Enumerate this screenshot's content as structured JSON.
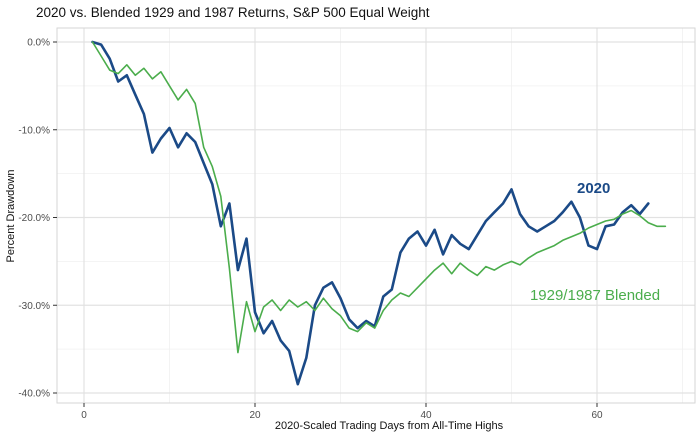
{
  "chart_data": {
    "type": "line",
    "title": "2020 vs. Blended 1929 and 1987 Returns, S&P 500 Equal Weight",
    "xlabel": "2020-Scaled Trading Days from All-Time Highs",
    "ylabel": "Percent Drawdown",
    "grid": "on",
    "legend": "in-chart text annotations",
    "x_axis": {
      "tick_values": [
        0,
        20,
        40,
        60
      ],
      "tick_labels": [
        "0",
        "20",
        "40",
        "60"
      ],
      "minor_ticks": [
        10,
        30,
        50,
        70
      ],
      "range": [
        -3,
        71
      ]
    },
    "y_axis": {
      "tick_values": [
        0,
        -10,
        -20,
        -30,
        -40
      ],
      "tick_labels": [
        "0.0%",
        "-10.0%",
        "-20.0%",
        "-30.0%",
        "-40.0%"
      ],
      "minor_ticks": [
        -5,
        -15,
        -25,
        -35
      ],
      "range": [
        -41.5,
        1.5
      ]
    },
    "annotations": {
      "label_2020": "2020",
      "label_blended": "1929/1987 Blended"
    },
    "colors": {
      "blue_2020": "#1b4a87",
      "green_blended": "#4bad4c",
      "grid_major": "#e2e2e2",
      "grid_minor": "#f0f0f0",
      "panel_border": "#d6d6d6",
      "tick_mark": "#333333"
    },
    "series": [
      {
        "id": "2020",
        "name": "2020",
        "color_key": "blue_2020",
        "width": 2.6,
        "points": [
          [
            1,
            0.0
          ],
          [
            2,
            -0.3
          ],
          [
            3,
            -1.9
          ],
          [
            4,
            -4.5
          ],
          [
            5,
            -3.8
          ],
          [
            6,
            -6.0
          ],
          [
            7,
            -8.2
          ],
          [
            8,
            -12.6
          ],
          [
            9,
            -11.0
          ],
          [
            10,
            -9.8
          ],
          [
            11,
            -12.0
          ],
          [
            12,
            -10.4
          ],
          [
            13,
            -11.4
          ],
          [
            14,
            -13.8
          ],
          [
            15,
            -16.2
          ],
          [
            16,
            -21.0
          ],
          [
            17,
            -18.4
          ],
          [
            18,
            -26.0
          ],
          [
            19,
            -22.4
          ],
          [
            20,
            -30.8
          ],
          [
            21,
            -33.2
          ],
          [
            22,
            -31.8
          ],
          [
            23,
            -34.0
          ],
          [
            24,
            -35.2
          ],
          [
            25,
            -39.0
          ],
          [
            26,
            -36.0
          ],
          [
            27,
            -30.0
          ],
          [
            28,
            -28.0
          ],
          [
            29,
            -27.4
          ],
          [
            30,
            -29.2
          ],
          [
            31,
            -31.6
          ],
          [
            32,
            -32.6
          ],
          [
            33,
            -31.8
          ],
          [
            34,
            -32.4
          ],
          [
            35,
            -29.0
          ],
          [
            36,
            -28.2
          ],
          [
            37,
            -24.0
          ],
          [
            38,
            -22.4
          ],
          [
            39,
            -21.6
          ],
          [
            40,
            -23.2
          ],
          [
            41,
            -21.4
          ],
          [
            42,
            -24.2
          ],
          [
            43,
            -22.0
          ],
          [
            44,
            -23.0
          ],
          [
            45,
            -23.6
          ],
          [
            46,
            -22.0
          ],
          [
            47,
            -20.4
          ],
          [
            48,
            -19.4
          ],
          [
            49,
            -18.4
          ],
          [
            50,
            -16.8
          ],
          [
            51,
            -19.6
          ],
          [
            52,
            -21.0
          ],
          [
            53,
            -21.6
          ],
          [
            54,
            -21.0
          ],
          [
            55,
            -20.4
          ],
          [
            56,
            -19.4
          ],
          [
            57,
            -18.2
          ],
          [
            58,
            -20.0
          ],
          [
            59,
            -23.2
          ],
          [
            60,
            -23.6
          ],
          [
            61,
            -21.0
          ],
          [
            62,
            -20.8
          ],
          [
            63,
            -19.4
          ],
          [
            64,
            -18.6
          ],
          [
            65,
            -19.6
          ],
          [
            66,
            -18.4
          ]
        ]
      },
      {
        "id": "blended",
        "name": "1929/1987 Blended",
        "color_key": "green_blended",
        "width": 1.6,
        "points": [
          [
            1,
            0.0
          ],
          [
            2,
            -1.6
          ],
          [
            3,
            -3.2
          ],
          [
            4,
            -3.6
          ],
          [
            5,
            -2.6
          ],
          [
            6,
            -3.8
          ],
          [
            7,
            -3.0
          ],
          [
            8,
            -4.2
          ],
          [
            9,
            -3.4
          ],
          [
            10,
            -5.0
          ],
          [
            11,
            -6.6
          ],
          [
            12,
            -5.4
          ],
          [
            13,
            -7.0
          ],
          [
            14,
            -12.0
          ],
          [
            15,
            -14.2
          ],
          [
            16,
            -17.6
          ],
          [
            17,
            -25.8
          ],
          [
            18,
            -35.4
          ],
          [
            19,
            -29.6
          ],
          [
            20,
            -33.0
          ],
          [
            21,
            -30.2
          ],
          [
            22,
            -29.4
          ],
          [
            23,
            -30.6
          ],
          [
            24,
            -29.4
          ],
          [
            25,
            -30.2
          ],
          [
            26,
            -29.6
          ],
          [
            27,
            -30.6
          ],
          [
            28,
            -29.2
          ],
          [
            29,
            -30.4
          ],
          [
            30,
            -31.2
          ],
          [
            31,
            -32.6
          ],
          [
            32,
            -33.0
          ],
          [
            33,
            -32.0
          ],
          [
            34,
            -32.6
          ],
          [
            35,
            -30.6
          ],
          [
            36,
            -29.4
          ],
          [
            37,
            -28.6
          ],
          [
            38,
            -29.0
          ],
          [
            39,
            -28.0
          ],
          [
            40,
            -27.0
          ],
          [
            41,
            -26.0
          ],
          [
            42,
            -25.2
          ],
          [
            43,
            -26.4
          ],
          [
            44,
            -25.2
          ],
          [
            45,
            -26.0
          ],
          [
            46,
            -26.6
          ],
          [
            47,
            -25.6
          ],
          [
            48,
            -26.0
          ],
          [
            49,
            -25.4
          ],
          [
            50,
            -25.0
          ],
          [
            51,
            -25.4
          ],
          [
            52,
            -24.6
          ],
          [
            53,
            -24.0
          ],
          [
            54,
            -23.6
          ],
          [
            55,
            -23.2
          ],
          [
            56,
            -22.6
          ],
          [
            57,
            -22.2
          ],
          [
            58,
            -21.8
          ],
          [
            59,
            -21.2
          ],
          [
            60,
            -20.8
          ],
          [
            61,
            -20.4
          ],
          [
            62,
            -20.2
          ],
          [
            63,
            -19.6
          ],
          [
            64,
            -19.2
          ],
          [
            65,
            -19.8
          ],
          [
            66,
            -20.6
          ],
          [
            67,
            -21.0
          ],
          [
            68,
            -21.0
          ]
        ]
      }
    ]
  }
}
